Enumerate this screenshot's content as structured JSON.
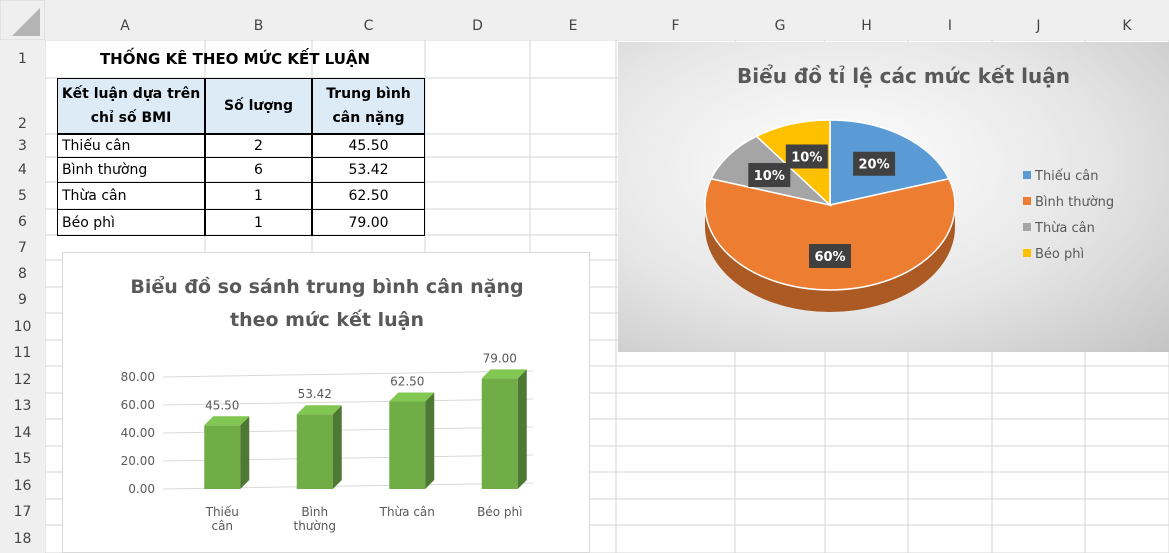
{
  "sheet": {
    "columns": [
      "A",
      "B",
      "C",
      "D",
      "E",
      "F",
      "G",
      "H",
      "I",
      "J",
      "K"
    ],
    "row_numbers": [
      1,
      2,
      3,
      4,
      5,
      6,
      7,
      8,
      9,
      10,
      11,
      12,
      13,
      14,
      15,
      16,
      17,
      18
    ]
  },
  "table": {
    "title": "THỐNG KÊ THEO MỨC KẾT LUẬN",
    "header": [
      [
        "Kết luận dựa trên",
        "chỉ số BMI"
      ],
      [
        "Số lượng"
      ],
      [
        "Trung bình",
        "cân nặng"
      ]
    ],
    "rows": [
      [
        "Thiếu cân",
        "2",
        "45.50"
      ],
      [
        "Bình thường",
        "6",
        "53.42"
      ],
      [
        "Thừa cân",
        "1",
        "62.50"
      ],
      [
        "Béo phì",
        "1",
        "79.00"
      ]
    ]
  },
  "chart_data": [
    {
      "type": "bar",
      "title": "Biểu đồ so sánh trung bình cân nặng theo mức kết luận",
      "categories": [
        "Thiếu cân",
        "Bình thường",
        "Thừa cân",
        "Béo phì"
      ],
      "values": [
        45.5,
        53.42,
        62.5,
        79
      ],
      "value_labels": [
        "45.50",
        "53.42",
        "62.50",
        "79.00"
      ],
      "color": "#70ad47",
      "ylim": [
        0,
        80
      ],
      "yticks": [
        {
          "value": 0,
          "label": "0.00"
        },
        {
          "value": 20,
          "label": "20.00"
        },
        {
          "value": 40,
          "label": "40.00"
        },
        {
          "value": 60,
          "label": "60.00"
        },
        {
          "value": 80,
          "label": "80.00"
        }
      ],
      "grid": true
    },
    {
      "type": "pie",
      "title": "Biểu đồ tỉ lệ các mức kết luận",
      "categories": [
        "Thiếu cân",
        "Bình thường",
        "Thừa cân",
        "Béo phì"
      ],
      "values": [
        20,
        60,
        10,
        10
      ],
      "value_labels": [
        "20%",
        "60%",
        "10%",
        "10%"
      ],
      "colors": [
        "#5b9bd5",
        "#ed7d31",
        "#a5a5a5",
        "#ffc000"
      ],
      "legend": "right"
    }
  ]
}
